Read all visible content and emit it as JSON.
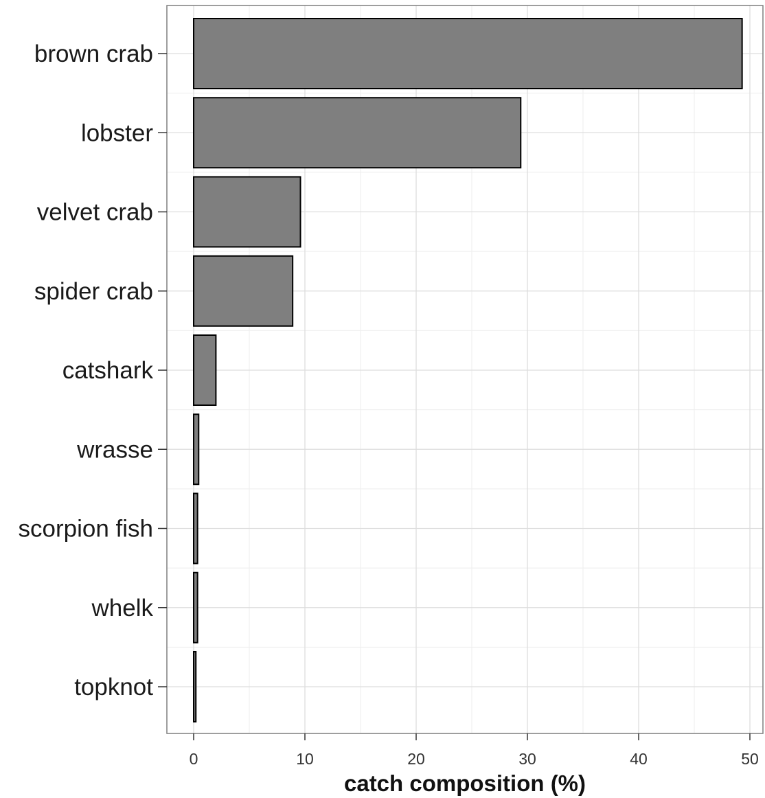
{
  "chart_data": {
    "type": "bar",
    "orientation": "horizontal",
    "title": "",
    "xlabel": "catch composition (%)",
    "ylabel": "",
    "xlim": [
      0,
      50
    ],
    "xticks": [
      0,
      10,
      20,
      30,
      40,
      50
    ],
    "categories": [
      "brown crab",
      "lobster",
      "velvet crab",
      "spider crab",
      "catshark",
      "wrasse",
      "scorpion fish",
      "whelk",
      "topknot"
    ],
    "values": [
      49.3,
      29.4,
      9.6,
      8.9,
      2.0,
      0.45,
      0.35,
      0.35,
      0.2
    ],
    "grid": true,
    "legend": "none",
    "colors": {
      "bar_fill": "#7f7f7f",
      "bar_stroke": "#000000",
      "grid_major": "#dddddd",
      "grid_minor": "#eeeeee",
      "panel_border": "#7f7f7f",
      "background": "#ffffff"
    }
  }
}
